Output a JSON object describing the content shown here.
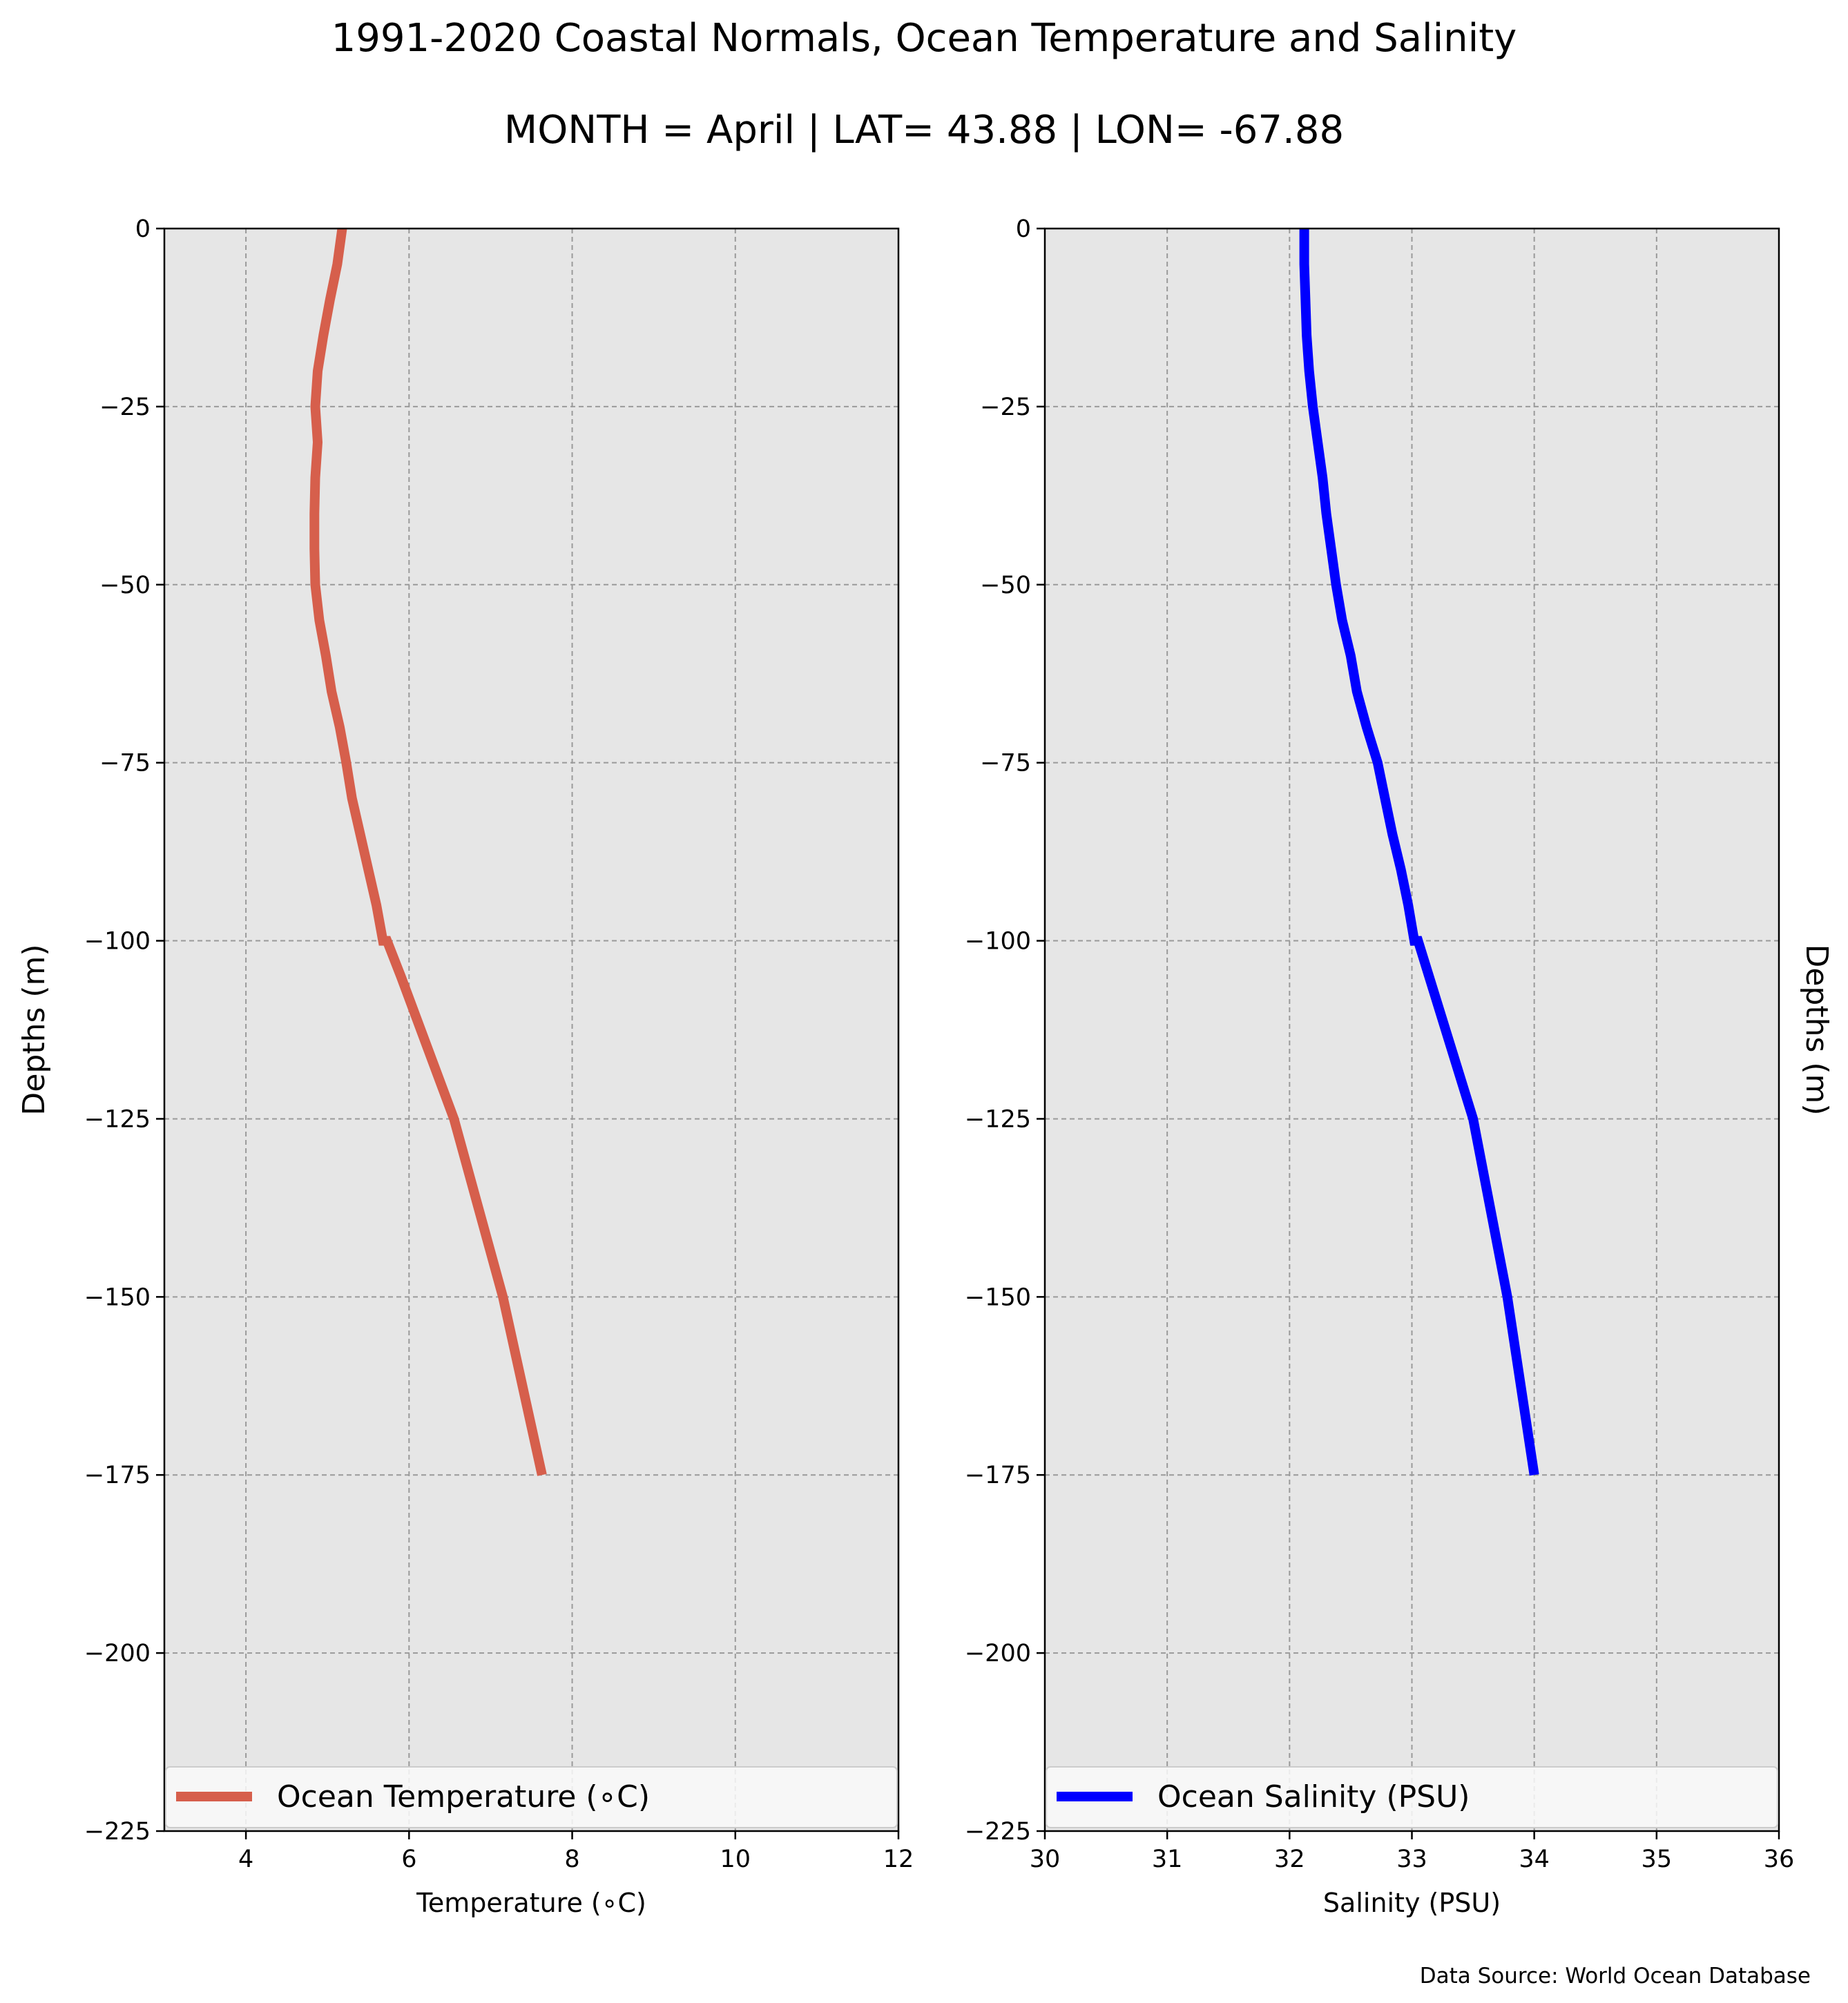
{
  "title": "1991-2020 Coastal Normals, Ocean Temperature and Salinity",
  "subtitle": "MONTH = April | LAT= 43.88 | LON= -67.88",
  "source": "Data Source: World Ocean Database",
  "colors": {
    "plot_bg": "#e6e6e6",
    "grid": "#9a9a9a",
    "temperature": "#d65f4c",
    "salinity": "#0000ff"
  },
  "chart_data": [
    {
      "type": "line",
      "xlabel": "Temperature ($^\\circ$C)",
      "xlabel_display": "Temperature (∘C)",
      "ylabel": "Depths (m)",
      "xlim": [
        3,
        12
      ],
      "ylim": [
        -225,
        0
      ],
      "x_ticks": [
        4,
        6,
        8,
        10,
        12
      ],
      "y_ticks": [
        0,
        -25,
        -50,
        -75,
        -100,
        -125,
        -150,
        -175,
        -200,
        -225
      ],
      "y_tick_labels": [
        "0",
        "−25",
        "−50",
        "−75",
        "−100",
        "−125",
        "−150",
        "−175",
        "−200",
        "−225"
      ],
      "grid": true,
      "legend": "lower center",
      "series": [
        {
          "name": "Ocean Temperature ($^\\circ$C)",
          "legend_display": "Ocean Temperature (∘C)",
          "color": "#d65f4c",
          "x": [
            5.18,
            5.12,
            5.03,
            4.95,
            4.88,
            4.85,
            4.88,
            4.85,
            4.84,
            4.84,
            4.85,
            4.9,
            4.98,
            5.05,
            5.15,
            5.23,
            5.3,
            5.4,
            5.5,
            5.6,
            5.68,
            5.73,
            5.9,
            6.55,
            7.15,
            7.63
          ],
          "y": [
            0,
            -5,
            -10,
            -15,
            -20,
            -25,
            -30,
            -35,
            -40,
            -45,
            -50,
            -55,
            -60,
            -65,
            -70,
            -75,
            -80,
            -85,
            -90,
            -95,
            -100,
            -100,
            -105,
            -125,
            -150,
            -175
          ]
        }
      ]
    },
    {
      "type": "line",
      "xlabel": "Salinity (PSU)",
      "ylabel": "Depths (m)",
      "xlim": [
        30,
        36
      ],
      "ylim": [
        -225,
        0
      ],
      "x_ticks": [
        30,
        31,
        32,
        33,
        34,
        35,
        36
      ],
      "y_ticks": [
        0,
        -25,
        -50,
        -75,
        -100,
        -125,
        -150,
        -175,
        -200,
        -225
      ],
      "y_tick_labels": [
        "0",
        "−25",
        "−50",
        "−75",
        "−100",
        "−125",
        "−150",
        "−175",
        "−200",
        "−225"
      ],
      "grid": true,
      "legend": "lower center",
      "series": [
        {
          "name": "Ocean Salinity (PSU)",
          "color": "#0000ff",
          "x": [
            32.12,
            32.12,
            32.13,
            32.14,
            32.16,
            32.19,
            32.23,
            32.27,
            32.3,
            32.34,
            32.38,
            32.43,
            32.5,
            32.55,
            32.63,
            32.72,
            32.78,
            32.84,
            32.91,
            32.97,
            33.02,
            33.05,
            33.5,
            33.78,
            34.0
          ],
          "y": [
            0,
            -5,
            -10,
            -15,
            -20,
            -25,
            -30,
            -35,
            -40,
            -45,
            -50,
            -55,
            -60,
            -65,
            -70,
            -75,
            -80,
            -85,
            -90,
            -95,
            -100,
            -100,
            -125,
            -150,
            -175
          ]
        }
      ]
    }
  ]
}
